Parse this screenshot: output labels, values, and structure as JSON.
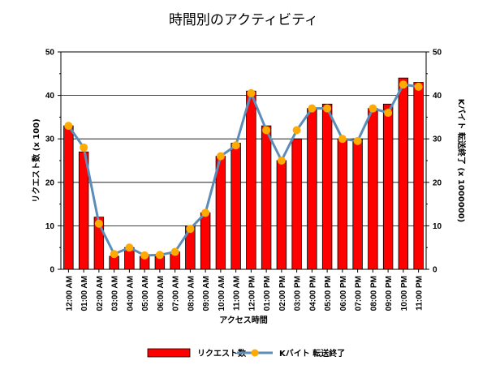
{
  "chart_data": {
    "type": "bar",
    "title": "時間別のアクティビティ",
    "xlabel": "アクセス時間",
    "ylabel": "リクエスト数 (x 100)",
    "y2label": "Kバイト 転送終了 (x 1000000)",
    "ylim": [
      0,
      50
    ],
    "y2lim": [
      0,
      50
    ],
    "yticks": [
      "0",
      "10",
      "20",
      "30",
      "40",
      "50"
    ],
    "grid": true,
    "legend_position": "bottom",
    "categories": [
      "12:00 AM",
      "01:00 AM",
      "02:00 AM",
      "03:00 AM",
      "04:00 AM",
      "05:00 AM",
      "06:00 AM",
      "07:00 AM",
      "08:00 AM",
      "09:00 AM",
      "10:00 AM",
      "11:00 AM",
      "12:00 PM",
      "01:00 PM",
      "02:00 PM",
      "03:00 PM",
      "04:00 PM",
      "05:00 PM",
      "06:00 PM",
      "07:00 PM",
      "08:00 PM",
      "09:00 PM",
      "10:00 PM",
      "11:00 PM"
    ],
    "series": [
      {
        "name": "リクエスト数",
        "kind": "bar",
        "axis": "left",
        "color": "#ff0000",
        "values": [
          33,
          27,
          12,
          3,
          5,
          3,
          3,
          4,
          10,
          13,
          26,
          29,
          41,
          33,
          25,
          30,
          37,
          38,
          30,
          30,
          37,
          38,
          44,
          43
        ]
      },
      {
        "name": "Kバイト 転送終了",
        "kind": "line",
        "axis": "right",
        "color": "#5b8db8",
        "marker_color": "#ffaa00",
        "values": [
          33,
          28,
          10.5,
          3.5,
          5,
          3.2,
          3.3,
          4,
          9.3,
          13,
          26,
          28.5,
          40.5,
          32,
          25,
          32,
          37,
          37,
          30,
          29.5,
          37,
          36,
          42.5,
          42
        ]
      }
    ]
  }
}
